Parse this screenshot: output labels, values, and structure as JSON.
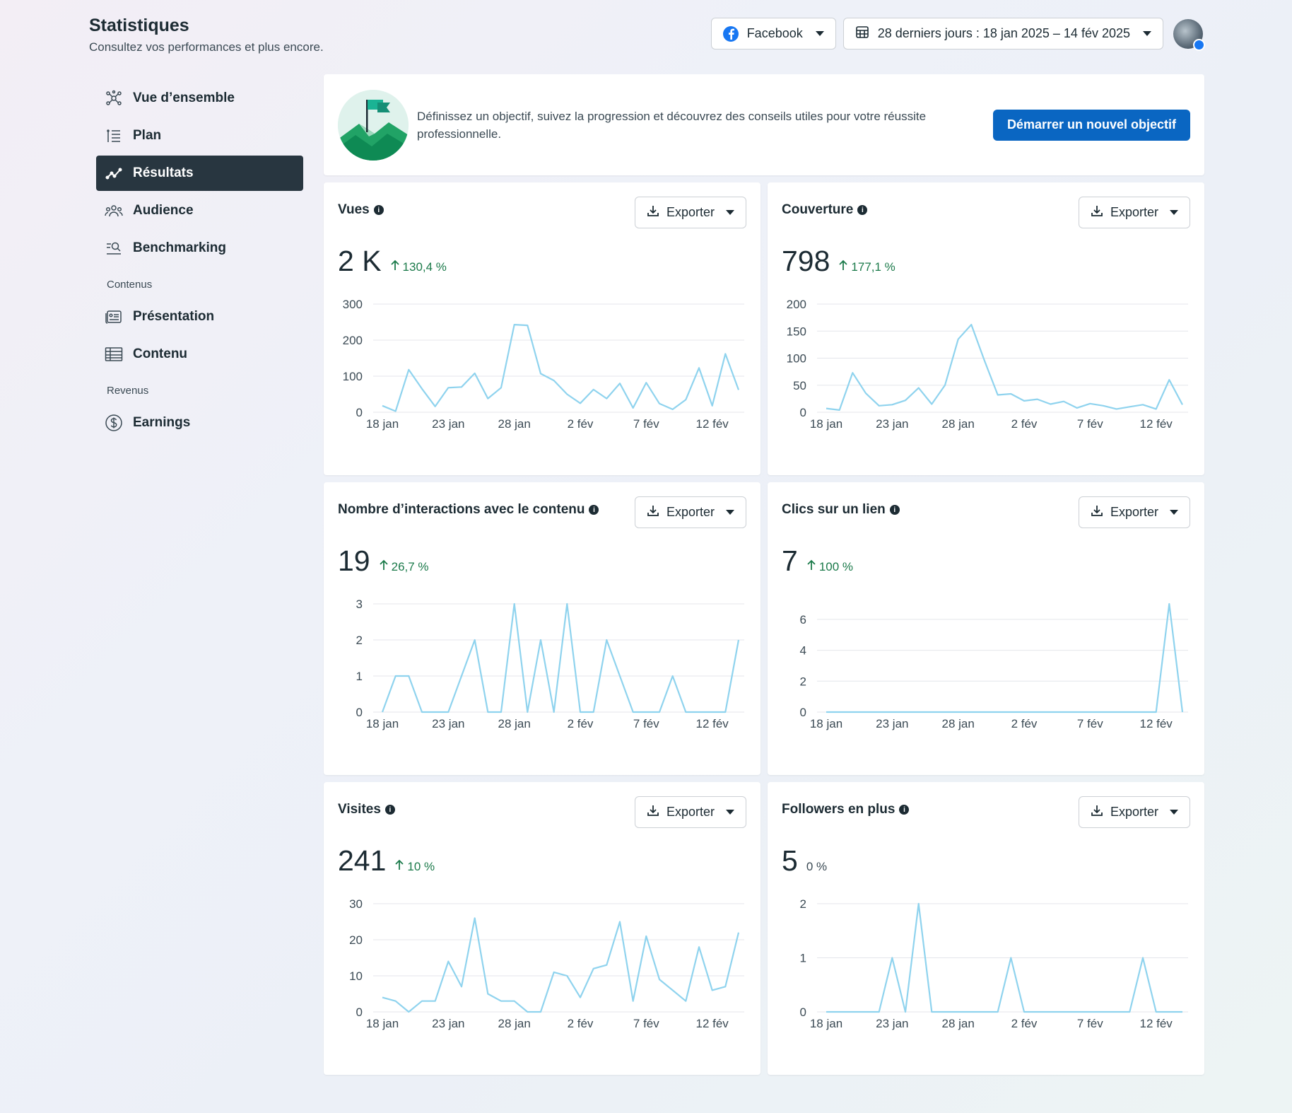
{
  "header": {
    "title": "Statistiques",
    "subtitle": "Consultez vos performances et plus encore.",
    "platform_select": "Facebook",
    "date_range": "28 derniers jours : 18 jan 2025 – 14 fév 2025"
  },
  "sidebar": {
    "items": [
      {
        "label": "Vue d’ensemble",
        "icon": "overview-icon"
      },
      {
        "label": "Plan",
        "icon": "plan-icon"
      },
      {
        "label": "Résultats",
        "icon": "results-icon",
        "active": true
      },
      {
        "label": "Audience",
        "icon": "audience-icon"
      },
      {
        "label": "Benchmarking",
        "icon": "benchmarking-icon"
      }
    ],
    "section_content": "Contenus",
    "content_items": [
      {
        "label": "Présentation",
        "icon": "presentation-icon"
      },
      {
        "label": "Contenu",
        "icon": "content-table-icon"
      }
    ],
    "section_revenue": "Revenus",
    "revenue_items": [
      {
        "label": "Earnings",
        "icon": "dollar-icon"
      }
    ]
  },
  "banner": {
    "text": "Définissez un objectif, suivez la progression et découvrez des conseils utiles pour votre réussite professionnelle.",
    "button": "Démarrer un nouvel objectif"
  },
  "export_label": "Exporter",
  "colors": {
    "line": "#8fd3ee",
    "grid": "#e4e6eb",
    "active_nav": "#283640",
    "primary": "#0a66c2",
    "positive": "#1b7a4a"
  },
  "cards": [
    {
      "title": "Vues",
      "value": "2 K",
      "change": "130,4 %",
      "arrow": true
    },
    {
      "title": "Couverture",
      "value": "798",
      "change": "177,1 %",
      "arrow": true
    },
    {
      "title": "Nombre d’interactions avec le contenu",
      "value": "19",
      "change": "26,7 %",
      "arrow": true
    },
    {
      "title": "Clics sur un lien",
      "value": "7",
      "change": "100 %",
      "arrow": true
    },
    {
      "title": "Visites",
      "value": "241",
      "change": "10 %",
      "arrow": true
    },
    {
      "title": "Followers en plus",
      "value": "5",
      "change": "0 %",
      "arrow": false
    }
  ],
  "chart_data": [
    {
      "type": "line",
      "x_ticks": [
        "18 jan",
        "23 jan",
        "28 jan",
        "2 fév",
        "7 fév",
        "12 fév"
      ],
      "ylim": [
        0,
        300
      ],
      "y_ticks": [
        0,
        100,
        200,
        300
      ],
      "values": [
        18,
        3,
        118,
        65,
        16,
        68,
        70,
        108,
        38,
        68,
        243,
        241,
        107,
        88,
        50,
        25,
        63,
        38,
        80,
        12,
        82,
        24,
        8,
        35,
        123,
        18,
        162,
        62
      ]
    },
    {
      "type": "line",
      "x_ticks": [
        "18 jan",
        "23 jan",
        "28 jan",
        "2 fév",
        "7 fév",
        "12 fév"
      ],
      "ylim": [
        0,
        200
      ],
      "y_ticks": [
        0,
        50,
        100,
        150,
        200
      ],
      "values": [
        7,
        4,
        73,
        35,
        12,
        14,
        22,
        45,
        15,
        50,
        135,
        162,
        95,
        32,
        34,
        21,
        24,
        15,
        20,
        8,
        16,
        12,
        6,
        10,
        14,
        6,
        60,
        14
      ]
    },
    {
      "type": "line",
      "x_ticks": [
        "18 jan",
        "23 jan",
        "28 jan",
        "2 fév",
        "7 fév",
        "12 fév"
      ],
      "ylim": [
        0,
        3
      ],
      "y_ticks": [
        0,
        1,
        2,
        3
      ],
      "values": [
        0,
        1,
        1,
        0,
        0,
        0,
        1,
        2,
        0,
        0,
        3,
        0,
        2,
        0,
        3,
        0,
        0,
        2,
        1,
        0,
        0,
        0,
        1,
        0,
        0,
        0,
        0,
        2
      ]
    },
    {
      "type": "line",
      "x_ticks": [
        "18 jan",
        "23 jan",
        "28 jan",
        "2 fév",
        "7 fév",
        "12 fév"
      ],
      "ylim": [
        0,
        7
      ],
      "y_ticks": [
        0,
        2,
        4,
        6
      ],
      "values": [
        0,
        0,
        0,
        0,
        0,
        0,
        0,
        0,
        0,
        0,
        0,
        0,
        0,
        0,
        0,
        0,
        0,
        0,
        0,
        0,
        0,
        0,
        0,
        0,
        0,
        0,
        7,
        0
      ]
    },
    {
      "type": "line",
      "x_ticks": [
        "18 jan",
        "23 jan",
        "28 jan",
        "2 fév",
        "7 fév",
        "12 fév"
      ],
      "ylim": [
        0,
        30
      ],
      "y_ticks": [
        0,
        10,
        20,
        30
      ],
      "values": [
        4,
        3,
        0,
        3,
        3,
        14,
        7,
        26,
        5,
        3,
        3,
        0,
        0,
        11,
        10,
        4,
        12,
        13,
        25,
        3,
        21,
        9,
        6,
        3,
        18,
        6,
        7,
        22
      ]
    },
    {
      "type": "line",
      "x_ticks": [
        "18 jan",
        "23 jan",
        "28 jan",
        "2 fév",
        "7 fév",
        "12 fév"
      ],
      "ylim": [
        0,
        2
      ],
      "y_ticks": [
        0,
        1,
        2
      ],
      "values": [
        0,
        0,
        0,
        0,
        0,
        1,
        0,
        2,
        0,
        0,
        0,
        0,
        0,
        0,
        1,
        0,
        0,
        0,
        0,
        0,
        0,
        0,
        0,
        0,
        1,
        0,
        0,
        0
      ]
    }
  ]
}
